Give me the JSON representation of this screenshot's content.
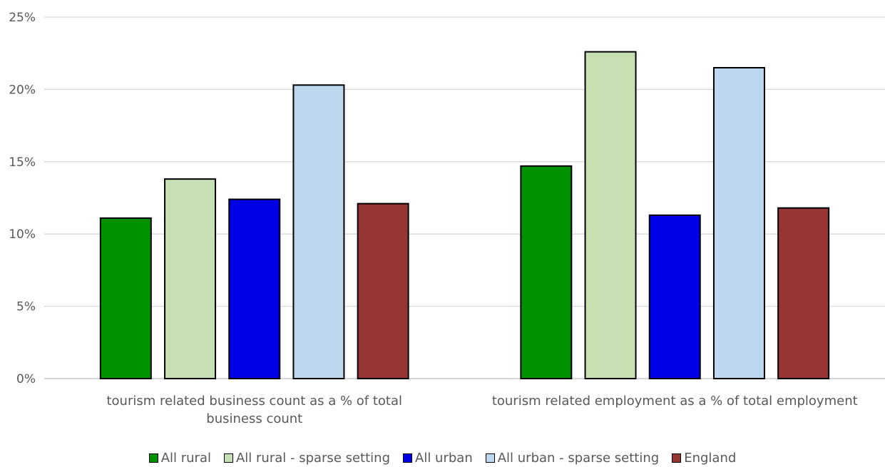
{
  "chart_data": {
    "type": "bar",
    "categories": [
      "tourism related business count as a % of total business count",
      "tourism related employment as a % of total employment"
    ],
    "series": [
      {
        "name": "All rural",
        "color": "#009100",
        "values": [
          11.1,
          14.7
        ]
      },
      {
        "name": "All rural - sparse setting",
        "color": "#c6e0b4",
        "values": [
          13.8,
          22.6
        ]
      },
      {
        "name": "All urban",
        "color": "#0000e6",
        "values": [
          12.4,
          11.3
        ]
      },
      {
        "name": "All urban - sparse setting",
        "color": "#bdd7ee",
        "values": [
          20.3,
          21.5
        ]
      },
      {
        "name": "England",
        "color": "#963634",
        "values": [
          12.1,
          11.8
        ]
      }
    ],
    "ylim": [
      0,
      25
    ],
    "yticks": [
      "0%",
      "5%",
      "10%",
      "15%",
      "20%",
      "25%"
    ],
    "grid": true,
    "legend_position": "bottom",
    "title": "",
    "xlabel": "",
    "ylabel": ""
  }
}
